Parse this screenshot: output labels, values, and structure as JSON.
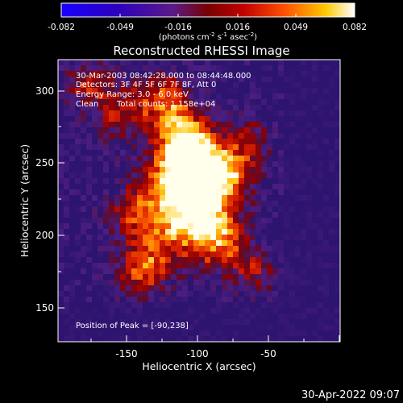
{
  "colorbar": {
    "ticks": [
      "-0.082",
      "-0.049",
      "-0.016",
      "0.016",
      "0.049",
      "0.082"
    ],
    "units_prefix": "(photons cm",
    "units_exp1": "-2",
    "units_mid": " s",
    "units_exp2": "-1",
    "units_mid2": " asec",
    "units_exp3": "-2",
    "units_suffix": ")"
  },
  "title": "Reconstructed RHESSI Image",
  "info": {
    "time_range": "30-Mar-2003 08:42:28.000 to 08:44:48.000",
    "detectors": "Detectors: 3F 4F 5F 6F 7F 8F, Att 0",
    "energy": "Energy Range: 3.0 - 6.0 keV",
    "method": "Clean",
    "counts": "Total counts: 1.158e+04",
    "peak": "Position of Peak = [-90,238]"
  },
  "axes": {
    "xlabel": "Heliocentric X (arcsec)",
    "ylabel": "Heliocentric Y (arcsec)",
    "xticks": [
      "-150",
      "-100",
      "-50"
    ],
    "yticks": [
      "300",
      "250",
      "200",
      "150"
    ]
  },
  "footer": {
    "timestamp": "30-Apr-2022 09:07"
  }
}
